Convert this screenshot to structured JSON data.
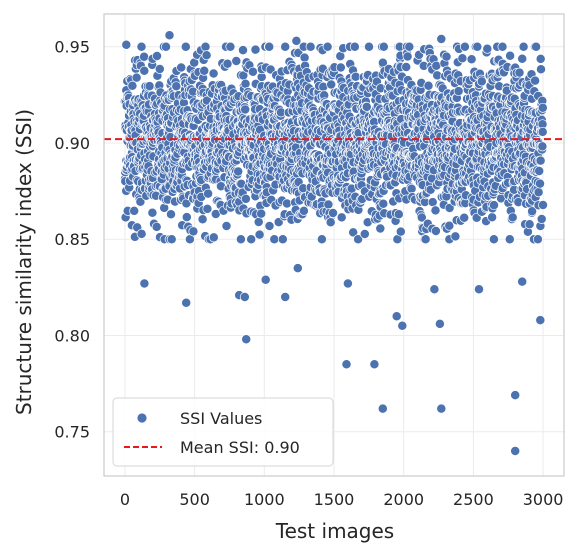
{
  "chart_data": {
    "type": "scatter",
    "xlabel": "Test images",
    "ylabel": "Structure similarity index (SSI)",
    "xlim": [
      -150,
      3150
    ],
    "ylim": [
      0.727,
      0.967
    ],
    "xticks": [
      0,
      500,
      1000,
      1500,
      2000,
      2500,
      3000
    ],
    "yticks": [
      0.75,
      0.8,
      0.85,
      0.9,
      0.95
    ],
    "ytick_labels": [
      "0.75",
      "0.80",
      "0.85",
      "0.90",
      "0.95"
    ],
    "grid": true,
    "legend_position": "lower-left",
    "series": [
      {
        "name": "SSI Values",
        "kind": "scatter",
        "color": "#4c72b0",
        "n_points": 3000,
        "x_range": [
          0,
          2999
        ],
        "y_mean": 0.902,
        "y_band": [
          0.85,
          0.95
        ],
        "outliers": [
          {
            "x": 320,
            "y": 0.956
          },
          {
            "x": 2270,
            "y": 0.954
          },
          {
            "x": 1230,
            "y": 0.953
          },
          {
            "x": 10,
            "y": 0.951
          },
          {
            "x": 2600,
            "y": 0.949
          },
          {
            "x": 140,
            "y": 0.827
          },
          {
            "x": 440,
            "y": 0.817
          },
          {
            "x": 820,
            "y": 0.821
          },
          {
            "x": 860,
            "y": 0.82
          },
          {
            "x": 870,
            "y": 0.798
          },
          {
            "x": 1010,
            "y": 0.829
          },
          {
            "x": 1150,
            "y": 0.82
          },
          {
            "x": 1240,
            "y": 0.835
          },
          {
            "x": 1600,
            "y": 0.827
          },
          {
            "x": 1590,
            "y": 0.785
          },
          {
            "x": 1790,
            "y": 0.785
          },
          {
            "x": 1850,
            "y": 0.762
          },
          {
            "x": 1950,
            "y": 0.81
          },
          {
            "x": 1990,
            "y": 0.805
          },
          {
            "x": 2220,
            "y": 0.824
          },
          {
            "x": 2260,
            "y": 0.806
          },
          {
            "x": 2270,
            "y": 0.762
          },
          {
            "x": 2540,
            "y": 0.824
          },
          {
            "x": 2800,
            "y": 0.769
          },
          {
            "x": 2800,
            "y": 0.74
          },
          {
            "x": 2850,
            "y": 0.828
          },
          {
            "x": 2980,
            "y": 0.808
          }
        ]
      },
      {
        "name": "Mean SSI: 0.90",
        "kind": "hline",
        "color": "#e8191b",
        "y": 0.902,
        "style": "dashed"
      }
    ]
  }
}
